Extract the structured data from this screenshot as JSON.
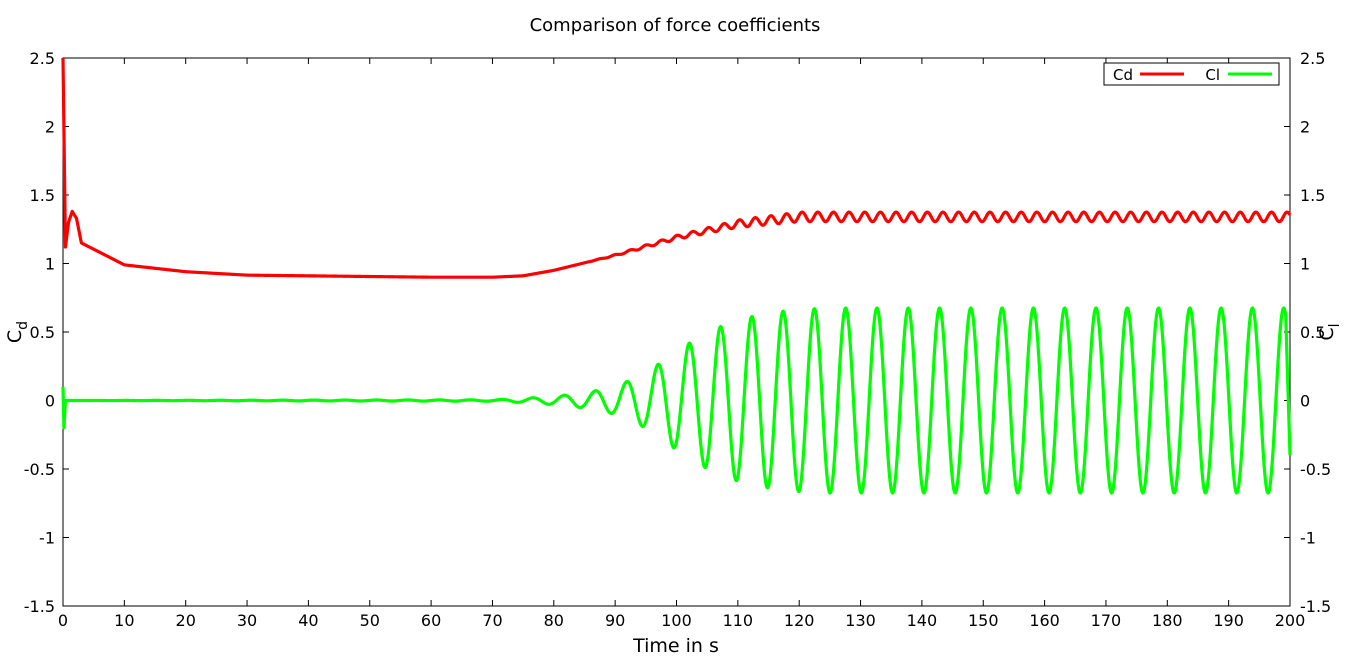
{
  "chart_data": {
    "type": "line",
    "title": "Comparison of force coefficients",
    "xlabel": "Time in s",
    "ylabel_left": {
      "main": "C",
      "sub": "d"
    },
    "ylabel_right": {
      "main": "C",
      "sub": "l"
    },
    "xlim": [
      0,
      200
    ],
    "ylim": [
      -1.5,
      2.5
    ],
    "x_ticks": [
      0,
      10,
      20,
      30,
      40,
      50,
      60,
      70,
      80,
      90,
      100,
      110,
      120,
      130,
      140,
      150,
      160,
      170,
      180,
      190,
      200
    ],
    "y_ticks": [
      -1.5,
      -1,
      -0.5,
      0,
      0.5,
      1,
      1.5,
      2,
      2.5
    ],
    "x_tick_labels": [
      "0",
      "10",
      "20",
      "30",
      "40",
      "50",
      "60",
      "70",
      "80",
      "90",
      "100",
      "110",
      "120",
      "130",
      "140",
      "150",
      "160",
      "170",
      "180",
      "190",
      "200"
    ],
    "y_tick_labels": [
      "-1.5",
      "-1",
      "-0.5",
      "0",
      "0.5",
      "1",
      "1.5",
      "2",
      "2.5"
    ],
    "grid": false,
    "legend_position": "top-right",
    "series": [
      {
        "name": "Cd",
        "color": "#ff0000",
        "model": "drag",
        "startup": {
          "spike_x": 0,
          "spike_y": 2.5,
          "dip_x": 0.4,
          "dip_y": 1.12,
          "peak_x": 1.5,
          "peak_y": 1.38
        },
        "baseline": [
          [
            3,
            1.15
          ],
          [
            10,
            0.99
          ],
          [
            20,
            0.94
          ],
          [
            30,
            0.915
          ],
          [
            40,
            0.91
          ],
          [
            50,
            0.905
          ],
          [
            60,
            0.9
          ],
          [
            70,
            0.9
          ],
          [
            75,
            0.91
          ],
          [
            80,
            0.95
          ],
          [
            90,
            1.06
          ],
          [
            100,
            1.19
          ],
          [
            110,
            1.29
          ],
          [
            120,
            1.34
          ],
          [
            200,
            1.34
          ]
        ],
        "oscillation": {
          "period": 2.55,
          "amplitude_envelope": [
            [
              0,
              0
            ],
            [
              85,
              0.0
            ],
            [
              95,
              0.01
            ],
            [
              105,
              0.02
            ],
            [
              112,
              0.03
            ],
            [
              120,
              0.035
            ],
            [
              200,
              0.035
            ]
          ]
        }
      },
      {
        "name": "Cl",
        "color": "#00ff00",
        "model": "lift",
        "startup": {
          "start_y": 0.1,
          "dip_y": -0.2
        },
        "oscillation": {
          "period": 5.1,
          "phase_zero_x": 85.5,
          "amplitude_envelope": [
            [
              0,
              0
            ],
            [
              70,
              0.005
            ],
            [
              75,
              0.015
            ],
            [
              80,
              0.03
            ],
            [
              85,
              0.055
            ],
            [
              90,
              0.1
            ],
            [
              95,
              0.2
            ],
            [
              100,
              0.36
            ],
            [
              105,
              0.5
            ],
            [
              110,
              0.59
            ],
            [
              115,
              0.64
            ],
            [
              120,
              0.665
            ],
            [
              125,
              0.675
            ],
            [
              200,
              0.675
            ]
          ]
        },
        "end_value": -0.4
      }
    ]
  }
}
